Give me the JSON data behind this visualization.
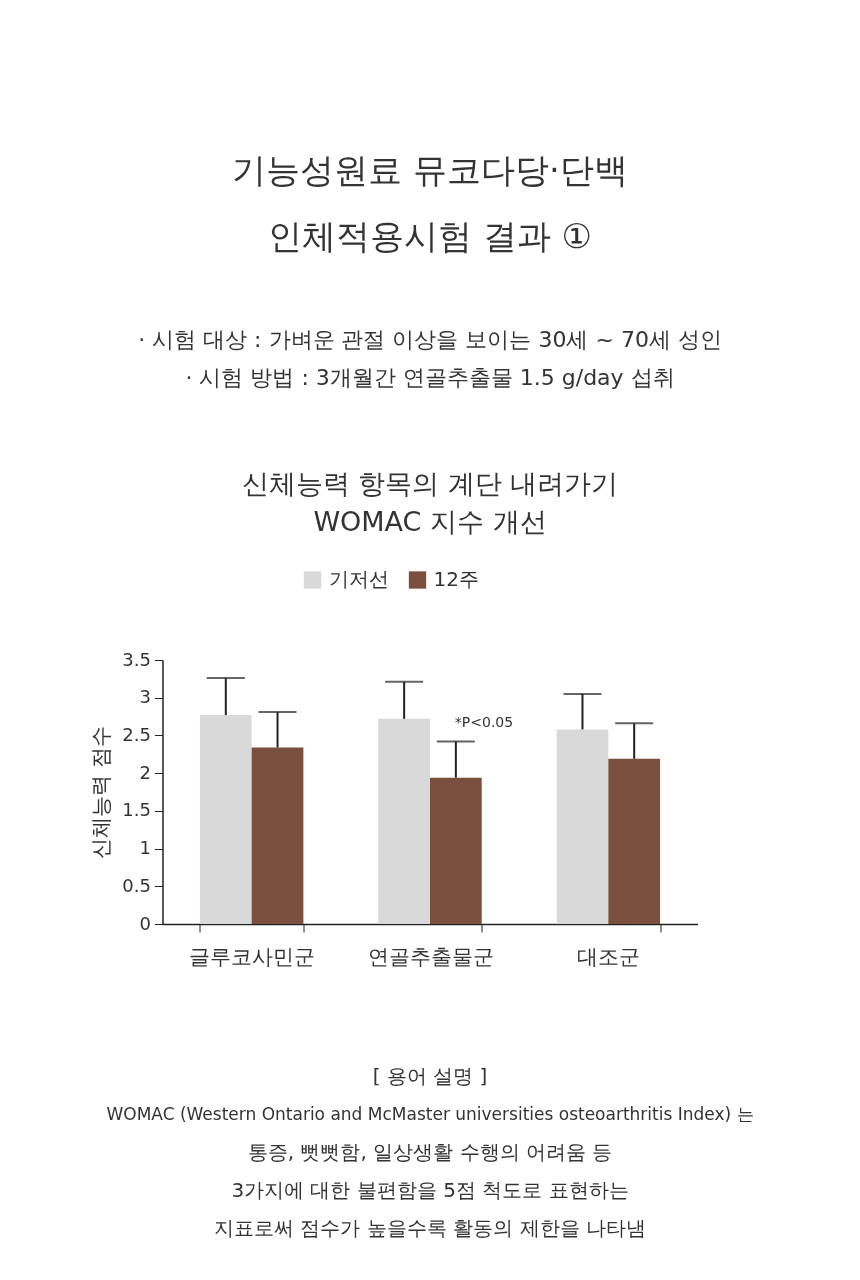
{
  "chart_data": {
    "type": "bar",
    "title": "기능성원료 뮤코다당·단백\n인체적용시험 결과 ①",
    "subtitle": "· 시험 대상 : 가벼운 관절 이상을 보이는 30세 ~ 70세 성인\n· 시험 방법 : 3개월간 연골추출물 1.5 g/day 섭취",
    "categories": [
      "글루코사민군",
      "연골추출물군",
      "대조군"
    ],
    "series": [
      {
        "name": "기저선",
        "color": "#d9d9d9",
        "values": [
          2.77,
          2.72,
          2.58
        ],
        "errors": [
          [
            2.77,
            3.26
          ],
          [
            2.72,
            3.21
          ],
          [
            2.58,
            3.05
          ]
        ]
      },
      {
        "name": "12주",
        "color": "#7a4f3d",
        "values": [
          2.34,
          1.94,
          2.19
        ],
        "errors": [
          [
            2.34,
            2.81
          ],
          [
            1.94,
            2.42
          ],
          [
            2.19,
            2.66
          ]
        ]
      }
    ],
    "ylabel": "신체능력 점수",
    "ylim": [
      0,
      3.5
    ],
    "yticks": [
      0,
      0.5,
      1,
      1.5,
      2,
      2.5,
      3,
      3.5
    ],
    "grid": false,
    "legend": "top",
    "annotations": [
      "신체능력 항목의 계단 내려가기\nWOMAC 지수 개선",
      {
        "text": "*P<0.05",
        "x": "연골추출물군",
        "y": 2.5
      },
      "[ 용어 설명 ]",
      "WOMAC (Western Ontario and McMaster universities osteoarthritis Index) 는",
      "통증, 뻣뻣함, 일상생활 수행의 어려움 등",
      "3가지에 대한 불편함을 5점 척도로 표현하는",
      "지표로써 점수가 높을수록 활동의 제한을 나타냄"
    ]
  }
}
